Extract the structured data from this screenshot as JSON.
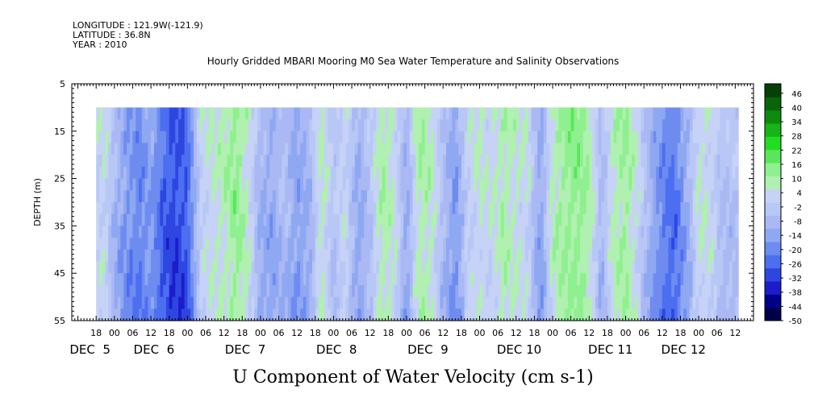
{
  "header": {
    "longitude": "LONGITUDE : 121.9W(-121.9)",
    "latitude": "LATITUDE : 36.8N",
    "year": "YEAR : 2010",
    "title": "Hourly Gridded MBARI Mooring M0 Sea Water Temperature and Salinity Observations"
  },
  "chart_data": {
    "type": "heatmap",
    "title": "Hourly Gridded MBARI Mooring M0 Sea Water Temperature and Salinity Observations",
    "xlabel": "U Component of Water Velocity (cm s-1)",
    "ylabel": "DEPTH (m)",
    "y_ticks": [
      5,
      15,
      25,
      35,
      45,
      55
    ],
    "ylim": [
      55,
      5
    ],
    "xlim_hours": [
      -8,
      216
    ],
    "data_x_range_hours": [
      0,
      211
    ],
    "data_depth_range": [
      10,
      55
    ],
    "hour_ticks": [
      {
        "h": 0,
        "label": "18"
      },
      {
        "h": 6,
        "label": "00"
      },
      {
        "h": 12,
        "label": "06"
      },
      {
        "h": 18,
        "label": "12"
      },
      {
        "h": 24,
        "label": "18"
      },
      {
        "h": 30,
        "label": "00"
      },
      {
        "h": 36,
        "label": "06"
      },
      {
        "h": 42,
        "label": "12"
      },
      {
        "h": 48,
        "label": "18"
      },
      {
        "h": 54,
        "label": "00"
      },
      {
        "h": 60,
        "label": "06"
      },
      {
        "h": 66,
        "label": "12"
      },
      {
        "h": 72,
        "label": "18"
      },
      {
        "h": 78,
        "label": "00"
      },
      {
        "h": 84,
        "label": "06"
      },
      {
        "h": 90,
        "label": "12"
      },
      {
        "h": 96,
        "label": "18"
      },
      {
        "h": 102,
        "label": "00"
      },
      {
        "h": 108,
        "label": "06"
      },
      {
        "h": 114,
        "label": "12"
      },
      {
        "h": 120,
        "label": "18"
      },
      {
        "h": 126,
        "label": "00"
      },
      {
        "h": 132,
        "label": "06"
      },
      {
        "h": 138,
        "label": "12"
      },
      {
        "h": 144,
        "label": "18"
      },
      {
        "h": 150,
        "label": "00"
      },
      {
        "h": 156,
        "label": "06"
      },
      {
        "h": 162,
        "label": "12"
      },
      {
        "h": 168,
        "label": "18"
      },
      {
        "h": 174,
        "label": "00"
      },
      {
        "h": 180,
        "label": "06"
      },
      {
        "h": 186,
        "label": "12"
      },
      {
        "h": 192,
        "label": "18"
      },
      {
        "h": 198,
        "label": "00"
      },
      {
        "h": 204,
        "label": "06"
      },
      {
        "h": 210,
        "label": "12"
      }
    ],
    "day_labels": [
      {
        "h": -2,
        "label": "DEC  5"
      },
      {
        "h": 19,
        "label": "DEC  6"
      },
      {
        "h": 49,
        "label": "DEC  7"
      },
      {
        "h": 79,
        "label": "DEC  8"
      },
      {
        "h": 109,
        "label": "DEC  9"
      },
      {
        "h": 139,
        "label": "DEC 10"
      },
      {
        "h": 169,
        "label": "DEC 11"
      },
      {
        "h": 193,
        "label": "DEC 12"
      }
    ],
    "colorbar_labels": [
      46,
      40,
      34,
      28,
      22,
      16,
      10,
      4,
      -2,
      -8,
      -14,
      -20,
      -26,
      -32,
      -38,
      -44,
      -50
    ],
    "colorbar_range": [
      -50,
      50
    ],
    "colors": [
      "#00004a",
      "#00008b",
      "#1c1ccc",
      "#2e46e0",
      "#4c6ef0",
      "#6e8cf0",
      "#8ea8f2",
      "#aab8f4",
      "#b8c8f6",
      "#c6d2f6",
      "#b0f0b0",
      "#8ef08e",
      "#5ae65a",
      "#22dd22",
      "#16b416",
      "#0e8a0e",
      "#0a640a",
      "#064006"
    ],
    "velocity_profile": [
      {
        "h": 0,
        "v": 2
      },
      {
        "h": 3,
        "v": 4
      },
      {
        "h": 6,
        "v": -6
      },
      {
        "h": 10,
        "v": -14
      },
      {
        "h": 14,
        "v": -18
      },
      {
        "h": 18,
        "v": -12
      },
      {
        "h": 22,
        "v": -24
      },
      {
        "h": 26,
        "v": -28
      },
      {
        "h": 30,
        "v": -24
      },
      {
        "h": 34,
        "v": 2
      },
      {
        "h": 38,
        "v": 6
      },
      {
        "h": 42,
        "v": 8
      },
      {
        "h": 46,
        "v": 14
      },
      {
        "h": 50,
        "v": 6
      },
      {
        "h": 54,
        "v": -8
      },
      {
        "h": 58,
        "v": -10
      },
      {
        "h": 62,
        "v": -4
      },
      {
        "h": 66,
        "v": -12
      },
      {
        "h": 70,
        "v": -8
      },
      {
        "h": 74,
        "v": 8
      },
      {
        "h": 78,
        "v": -2
      },
      {
        "h": 82,
        "v": 4
      },
      {
        "h": 86,
        "v": -10
      },
      {
        "h": 90,
        "v": -2
      },
      {
        "h": 94,
        "v": 10
      },
      {
        "h": 98,
        "v": 6
      },
      {
        "h": 102,
        "v": -10
      },
      {
        "h": 106,
        "v": 10
      },
      {
        "h": 110,
        "v": 8
      },
      {
        "h": 114,
        "v": -4
      },
      {
        "h": 118,
        "v": -14
      },
      {
        "h": 122,
        "v": 2
      },
      {
        "h": 126,
        "v": 6
      },
      {
        "h": 130,
        "v": 4
      },
      {
        "h": 134,
        "v": 10
      },
      {
        "h": 138,
        "v": 6
      },
      {
        "h": 142,
        "v": 4
      },
      {
        "h": 146,
        "v": -12
      },
      {
        "h": 150,
        "v": 8
      },
      {
        "h": 154,
        "v": 12
      },
      {
        "h": 158,
        "v": 14
      },
      {
        "h": 162,
        "v": 10
      },
      {
        "h": 166,
        "v": -6
      },
      {
        "h": 170,
        "v": 8
      },
      {
        "h": 174,
        "v": 12
      },
      {
        "h": 178,
        "v": 4
      },
      {
        "h": 182,
        "v": -8
      },
      {
        "h": 186,
        "v": -18
      },
      {
        "h": 190,
        "v": -22
      },
      {
        "h": 194,
        "v": -10
      },
      {
        "h": 198,
        "v": 6
      },
      {
        "h": 202,
        "v": 4
      },
      {
        "h": 206,
        "v": -4
      },
      {
        "h": 211,
        "v": -2
      }
    ]
  }
}
